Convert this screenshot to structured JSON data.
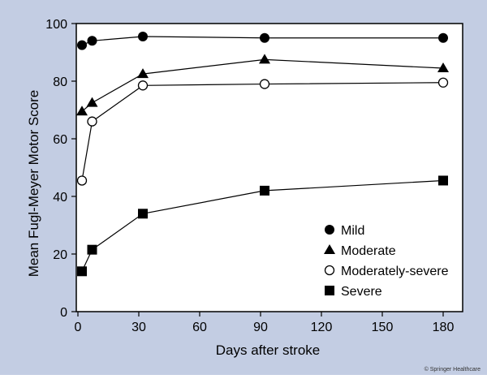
{
  "colors": {
    "background_frame": "#C3CDE3",
    "plot_fill": "#ffffff",
    "ink": "#000000"
  },
  "credit": "© Springer Healthcare",
  "chart_data": {
    "type": "line",
    "xlabel": "Days after stroke",
    "ylabel": "Mean Fugl-Meyer Motor Score",
    "xlim": [
      0,
      190
    ],
    "ylim": [
      0,
      100
    ],
    "xticks": [
      0,
      30,
      60,
      90,
      120,
      150,
      180
    ],
    "yticks": [
      0,
      20,
      40,
      60,
      80,
      100
    ],
    "grid": false,
    "legend_position": "bottom-right",
    "series": [
      {
        "name": "Mild",
        "marker": "filled-circle",
        "x": [
          2,
          7,
          32,
          92,
          180
        ],
        "y": [
          92.5,
          94,
          95.5,
          95,
          95
        ]
      },
      {
        "name": "Moderate",
        "marker": "filled-triangle",
        "x": [
          2,
          7,
          32,
          92,
          180
        ],
        "y": [
          69.5,
          72.5,
          82.5,
          87.5,
          84.5
        ]
      },
      {
        "name": "Moderately-severe",
        "marker": "open-circle",
        "x": [
          2,
          7,
          32,
          92,
          180
        ],
        "y": [
          45.5,
          66,
          78.5,
          79,
          79.5
        ]
      },
      {
        "name": "Severe",
        "marker": "filled-square",
        "x": [
          2,
          7,
          32,
          92,
          180
        ],
        "y": [
          14,
          21.5,
          34,
          42,
          45.5
        ]
      }
    ]
  }
}
